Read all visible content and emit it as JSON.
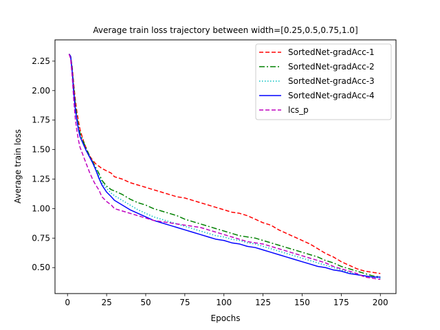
{
  "chart_data": {
    "type": "line",
    "title": "Average train loss trajectory between width=[0.25,0.5,0.75,1.0]",
    "xlabel": "Epochs",
    "ylabel": "Average train loss",
    "xlim": [
      -8,
      210
    ],
    "ylim": [
      0.28,
      2.43
    ],
    "xticks": [
      0,
      25,
      50,
      75,
      100,
      125,
      150,
      175,
      200
    ],
    "xtick_labels": [
      "0",
      "25",
      "50",
      "75",
      "100",
      "125",
      "150",
      "175",
      "200"
    ],
    "yticks": [
      0.5,
      0.75,
      1.0,
      1.25,
      1.5,
      1.75,
      2.0,
      2.25
    ],
    "ytick_labels": [
      "0.50",
      "0.75",
      "1.00",
      "1.25",
      "1.50",
      "1.75",
      "2.00",
      "2.25"
    ],
    "legend_position": "top-right",
    "grid": false,
    "series": [
      {
        "name": "SortedNet-gradAcc-1",
        "color": "#ff0000",
        "dash": "dashed",
        "x": [
          1,
          2,
          3,
          4,
          5,
          6,
          7,
          8,
          10,
          12,
          14,
          16,
          18,
          20,
          22,
          25,
          28,
          30,
          35,
          40,
          45,
          50,
          55,
          60,
          65,
          70,
          75,
          80,
          85,
          90,
          95,
          100,
          105,
          110,
          115,
          120,
          125,
          130,
          135,
          140,
          145,
          150,
          155,
          160,
          165,
          170,
          175,
          180,
          185,
          190,
          195,
          200
        ],
        "y": [
          2.31,
          2.29,
          2.2,
          2.05,
          1.92,
          1.82,
          1.74,
          1.67,
          1.58,
          1.51,
          1.45,
          1.41,
          1.38,
          1.36,
          1.34,
          1.32,
          1.3,
          1.27,
          1.25,
          1.22,
          1.2,
          1.18,
          1.16,
          1.14,
          1.12,
          1.1,
          1.09,
          1.07,
          1.05,
          1.03,
          1.01,
          0.99,
          0.97,
          0.96,
          0.94,
          0.91,
          0.88,
          0.86,
          0.82,
          0.79,
          0.76,
          0.73,
          0.7,
          0.66,
          0.62,
          0.59,
          0.55,
          0.52,
          0.49,
          0.47,
          0.46,
          0.45
        ]
      },
      {
        "name": "SortedNet-gradAcc-2",
        "color": "#008000",
        "dash": "dashdot",
        "x": [
          1,
          2,
          3,
          4,
          5,
          6,
          7,
          8,
          10,
          12,
          14,
          16,
          18,
          20,
          22,
          25,
          28,
          30,
          35,
          40,
          45,
          50,
          55,
          60,
          65,
          70,
          75,
          80,
          85,
          90,
          95,
          100,
          105,
          110,
          115,
          120,
          125,
          130,
          135,
          140,
          145,
          150,
          155,
          160,
          165,
          170,
          175,
          180,
          185,
          190,
          195,
          200
        ],
        "y": [
          2.31,
          2.29,
          2.18,
          2.02,
          1.88,
          1.78,
          1.7,
          1.64,
          1.57,
          1.51,
          1.45,
          1.4,
          1.35,
          1.3,
          1.24,
          1.19,
          1.16,
          1.15,
          1.12,
          1.08,
          1.05,
          1.03,
          1.0,
          0.98,
          0.96,
          0.94,
          0.91,
          0.89,
          0.87,
          0.85,
          0.83,
          0.81,
          0.79,
          0.77,
          0.76,
          0.75,
          0.73,
          0.71,
          0.69,
          0.67,
          0.65,
          0.63,
          0.61,
          0.59,
          0.56,
          0.54,
          0.51,
          0.49,
          0.47,
          0.45,
          0.43,
          0.42
        ]
      },
      {
        "name": "SortedNet-gradAcc-3",
        "color": "#00bfbf",
        "dash": "dotted",
        "x": [
          1,
          2,
          3,
          4,
          5,
          6,
          7,
          8,
          10,
          12,
          14,
          16,
          18,
          20,
          22,
          25,
          28,
          30,
          35,
          40,
          45,
          50,
          55,
          60,
          65,
          70,
          75,
          80,
          85,
          90,
          95,
          100,
          105,
          110,
          115,
          120,
          125,
          130,
          135,
          140,
          145,
          150,
          155,
          160,
          165,
          170,
          175,
          180,
          185,
          190,
          195,
          200
        ],
        "y": [
          2.31,
          2.29,
          2.17,
          2.0,
          1.86,
          1.76,
          1.68,
          1.62,
          1.55,
          1.49,
          1.44,
          1.39,
          1.34,
          1.28,
          1.22,
          1.17,
          1.13,
          1.11,
          1.07,
          1.03,
          0.99,
          0.96,
          0.93,
          0.91,
          0.89,
          0.87,
          0.85,
          0.83,
          0.81,
          0.79,
          0.77,
          0.76,
          0.74,
          0.73,
          0.71,
          0.7,
          0.68,
          0.66,
          0.64,
          0.62,
          0.6,
          0.58,
          0.56,
          0.54,
          0.52,
          0.5,
          0.48,
          0.46,
          0.44,
          0.43,
          0.42,
          0.41
        ]
      },
      {
        "name": "SortedNet-gradAcc-4",
        "color": "#0000ff",
        "dash": "solid",
        "x": [
          1,
          2,
          3,
          4,
          5,
          6,
          7,
          8,
          10,
          12,
          14,
          16,
          18,
          20,
          22,
          25,
          28,
          30,
          35,
          40,
          45,
          50,
          55,
          60,
          65,
          70,
          75,
          80,
          85,
          90,
          95,
          100,
          105,
          110,
          115,
          120,
          125,
          130,
          135,
          140,
          145,
          150,
          155,
          160,
          165,
          170,
          175,
          180,
          185,
          190,
          195,
          200
        ],
        "y": [
          2.31,
          2.29,
          2.16,
          1.98,
          1.84,
          1.75,
          1.67,
          1.61,
          1.55,
          1.49,
          1.44,
          1.39,
          1.33,
          1.26,
          1.2,
          1.14,
          1.1,
          1.07,
          1.03,
          0.99,
          0.96,
          0.93,
          0.9,
          0.88,
          0.86,
          0.84,
          0.82,
          0.8,
          0.78,
          0.76,
          0.74,
          0.73,
          0.71,
          0.7,
          0.68,
          0.67,
          0.65,
          0.63,
          0.61,
          0.59,
          0.57,
          0.55,
          0.53,
          0.51,
          0.5,
          0.48,
          0.47,
          0.45,
          0.44,
          0.43,
          0.42,
          0.42
        ]
      },
      {
        "name": "lcs_p",
        "color": "#bf00bf",
        "dash": "dashed",
        "x": [
          1,
          2,
          3,
          4,
          5,
          6,
          7,
          8,
          10,
          12,
          14,
          16,
          18,
          20,
          22,
          25,
          28,
          30,
          35,
          40,
          45,
          50,
          55,
          60,
          65,
          70,
          75,
          80,
          85,
          90,
          95,
          100,
          105,
          110,
          115,
          120,
          125,
          130,
          135,
          140,
          145,
          150,
          155,
          160,
          165,
          170,
          175,
          180,
          185,
          190,
          195,
          200
        ],
        "y": [
          2.31,
          2.27,
          2.12,
          1.92,
          1.76,
          1.66,
          1.58,
          1.52,
          1.45,
          1.38,
          1.31,
          1.25,
          1.2,
          1.16,
          1.1,
          1.06,
          1.03,
          1.0,
          0.98,
          0.96,
          0.94,
          0.92,
          0.9,
          0.89,
          0.88,
          0.87,
          0.86,
          0.85,
          0.84,
          0.82,
          0.8,
          0.78,
          0.76,
          0.74,
          0.72,
          0.71,
          0.7,
          0.68,
          0.66,
          0.64,
          0.62,
          0.6,
          0.58,
          0.56,
          0.54,
          0.51,
          0.49,
          0.47,
          0.45,
          0.42,
          0.41,
          0.4
        ]
      }
    ]
  }
}
